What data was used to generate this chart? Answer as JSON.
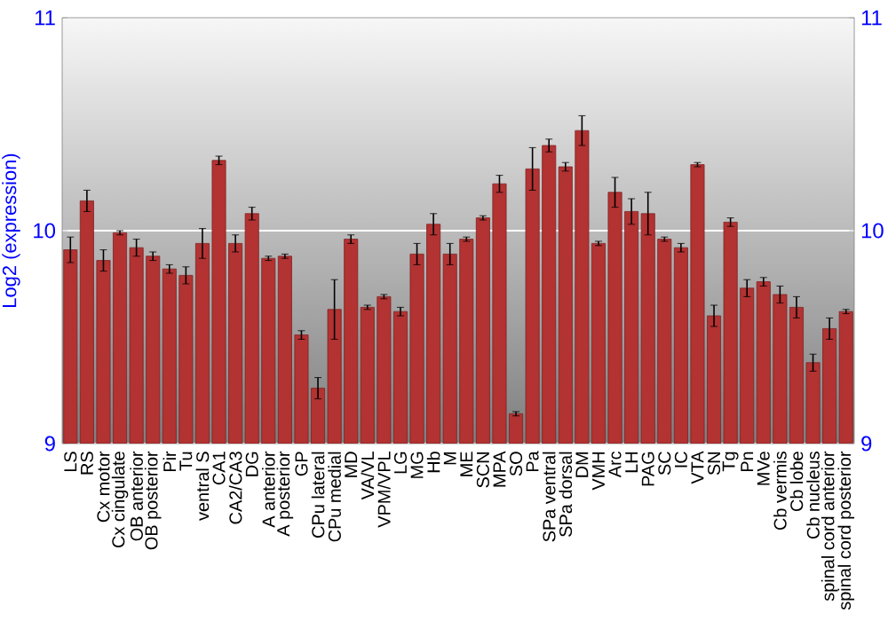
{
  "chart_data": {
    "type": "bar",
    "ylabel": "Log2 (expression)",
    "categories": [
      "LS",
      "RS",
      "Cx motor",
      "Cx cingulate",
      "OB anterior",
      "OB posterior",
      "Pir",
      "Tu",
      "ventral S",
      "CA1",
      "CA2/CA3",
      "DG",
      "A anterior",
      "A posterior",
      "GP",
      "CPu lateral",
      "CPu medial",
      "MD",
      "VA/VL",
      "VPM/VPL",
      "LG",
      "MG",
      "Hb",
      "M",
      "ME",
      "SCN",
      "MPA",
      "SO",
      "Pa",
      "SPa ventral",
      "SPa dorsal",
      "DM",
      "VMH",
      "Arc",
      "LH",
      "PAG",
      "SC",
      "IC",
      "VTA",
      "SN",
      "Tg",
      "Pn",
      "MVe",
      "Cb vermis",
      "Cb lobe",
      "Cb nucleus",
      "spinal cord anterior",
      "spinal cord posterior"
    ],
    "values": [
      9.91,
      10.14,
      9.86,
      9.99,
      9.92,
      9.88,
      9.82,
      9.79,
      9.94,
      10.33,
      9.94,
      10.08,
      9.87,
      9.88,
      9.51,
      9.26,
      9.63,
      9.96,
      9.64,
      9.69,
      9.62,
      9.89,
      10.03,
      9.89,
      9.96,
      10.06,
      10.22,
      9.14,
      10.29,
      10.4,
      10.3,
      10.47,
      9.94,
      10.18,
      10.09,
      10.08,
      9.96,
      9.92,
      10.31,
      9.6,
      10.04,
      9.73,
      9.76,
      9.7,
      9.64,
      9.38,
      9.54,
      9.62
    ],
    "errors": [
      0.06,
      0.05,
      0.05,
      0.01,
      0.04,
      0.02,
      0.02,
      0.04,
      0.07,
      0.02,
      0.04,
      0.03,
      0.01,
      0.01,
      0.02,
      0.05,
      0.14,
      0.02,
      0.01,
      0.01,
      0.02,
      0.05,
      0.05,
      0.05,
      0.01,
      0.01,
      0.04,
      0.01,
      0.1,
      0.03,
      0.02,
      0.07,
      0.01,
      0.07,
      0.06,
      0.1,
      0.01,
      0.02,
      0.01,
      0.05,
      0.02,
      0.04,
      0.02,
      0.04,
      0.05,
      0.04,
      0.05,
      0.01
    ],
    "color": "#b33232",
    "ylim": [
      9,
      11
    ],
    "yticks": [
      9,
      10,
      11
    ],
    "y2lim": [
      9,
      11
    ],
    "y2ticks": [
      9,
      10,
      11
    ],
    "grid": "y"
  }
}
